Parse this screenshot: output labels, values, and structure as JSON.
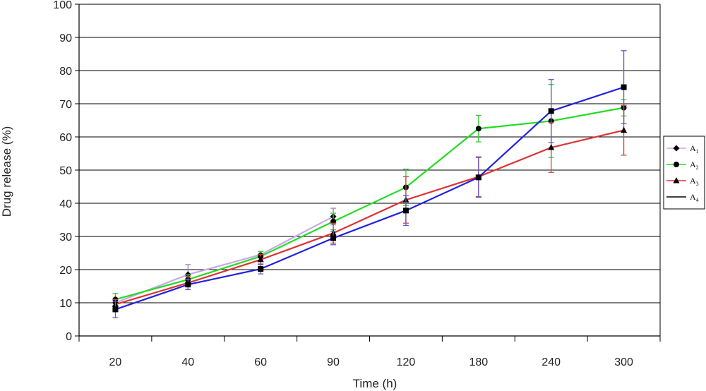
{
  "chart_data": {
    "type": "line",
    "title": "",
    "xlabel": "Time (h)",
    "ylabel": "Drug release (%)",
    "categories": [
      "20",
      "40",
      "60",
      "90",
      "120",
      "180",
      "240",
      "300"
    ],
    "ylim": [
      0,
      100
    ],
    "yticks": [
      "0",
      "10",
      "20",
      "30",
      "40",
      "50",
      "60",
      "70",
      "80",
      "90",
      "100"
    ],
    "grid": "horizontal",
    "legend_position": "right",
    "series": [
      {
        "name": "A1",
        "legend_main": "A",
        "legend_sub": "1",
        "color": "#c8a8e8",
        "marker": "diamond",
        "values": [
          10.0,
          18.5,
          24.5,
          36.0,
          null,
          null,
          null,
          null
        ],
        "errors": [
          1.0,
          3.0,
          1.0,
          2.5,
          null,
          null,
          null,
          null
        ],
        "error_color": "#9a7fbf"
      },
      {
        "name": "A2",
        "legend_main": "A",
        "legend_sub": "2",
        "color": "#22dd22",
        "marker": "circle",
        "values": [
          11.0,
          17.0,
          24.0,
          34.5,
          44.8,
          62.5,
          64.8,
          68.8
        ],
        "errors": [
          1.8,
          1.5,
          1.5,
          2.5,
          5.5,
          4.0,
          11.0,
          2.5
        ],
        "error_color": "#33cc33"
      },
      {
        "name": "A3",
        "legend_main": "A",
        "legend_sub": "3",
        "color": "#dd3333",
        "marker": "triangle",
        "values": [
          9.5,
          16.0,
          23.0,
          31.0,
          41.0,
          48.0,
          56.8,
          62.0
        ],
        "errors": [
          1.5,
          2.0,
          1.5,
          3.0,
          7.0,
          6.0,
          7.5,
          7.5
        ],
        "error_color": "#cc4444"
      },
      {
        "name": "A4",
        "legend_main": "A",
        "legend_sub": "4",
        "color": "#2222dd",
        "marker": "square",
        "values": [
          8.0,
          15.5,
          20.2,
          29.5,
          37.8,
          47.8,
          67.8,
          75.0
        ],
        "errors": [
          2.5,
          1.5,
          1.5,
          2.0,
          4.5,
          6.0,
          9.5,
          11.0
        ],
        "error_color": "#6655cc"
      }
    ]
  }
}
